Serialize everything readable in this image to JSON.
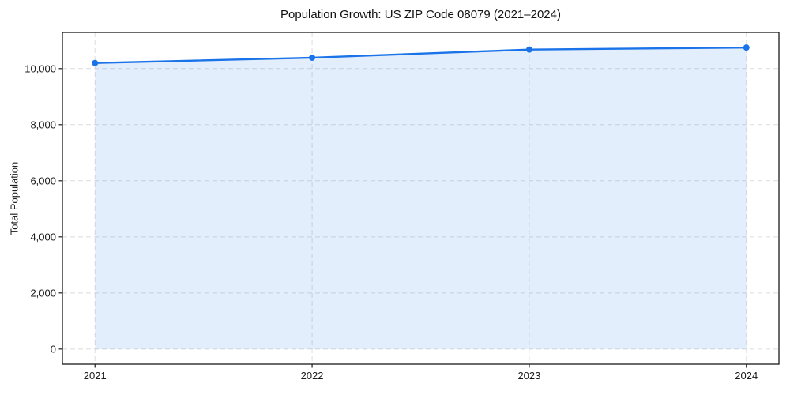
{
  "chart_data": {
    "type": "area",
    "title": "Population Growth: US ZIP Code 08079 (2021–2024)",
    "xlabel": "",
    "ylabel": "Total Population",
    "x": [
      2021,
      2022,
      2023,
      2024
    ],
    "series": [
      {
        "name": "Total Population",
        "values": [
          10200,
          10390,
          10680,
          10750
        ]
      }
    ],
    "xtick_labels": [
      "2021",
      "2022",
      "2023",
      "2024"
    ],
    "yticks": [
      0,
      2000,
      4000,
      6000,
      8000,
      10000
    ],
    "ytick_labels": [
      "0",
      "2,000",
      "4,000",
      "6,000",
      "8,000",
      "10,000"
    ],
    "xlim": [
      2020.85,
      2024.15
    ],
    "ylim": [
      -540,
      11290
    ],
    "grid": true,
    "grid_style": "dashed",
    "legend_position": "none",
    "fill_baseline": 0,
    "colors": {
      "line": "#1a73e8",
      "marker": "#1a73e8",
      "fill": "#1a73e8",
      "fill_opacity": 0.12,
      "grid": "#dcdcdc",
      "spine": "#1a1a1a",
      "text": "#1a1a1a",
      "background": "#ffffff"
    }
  }
}
